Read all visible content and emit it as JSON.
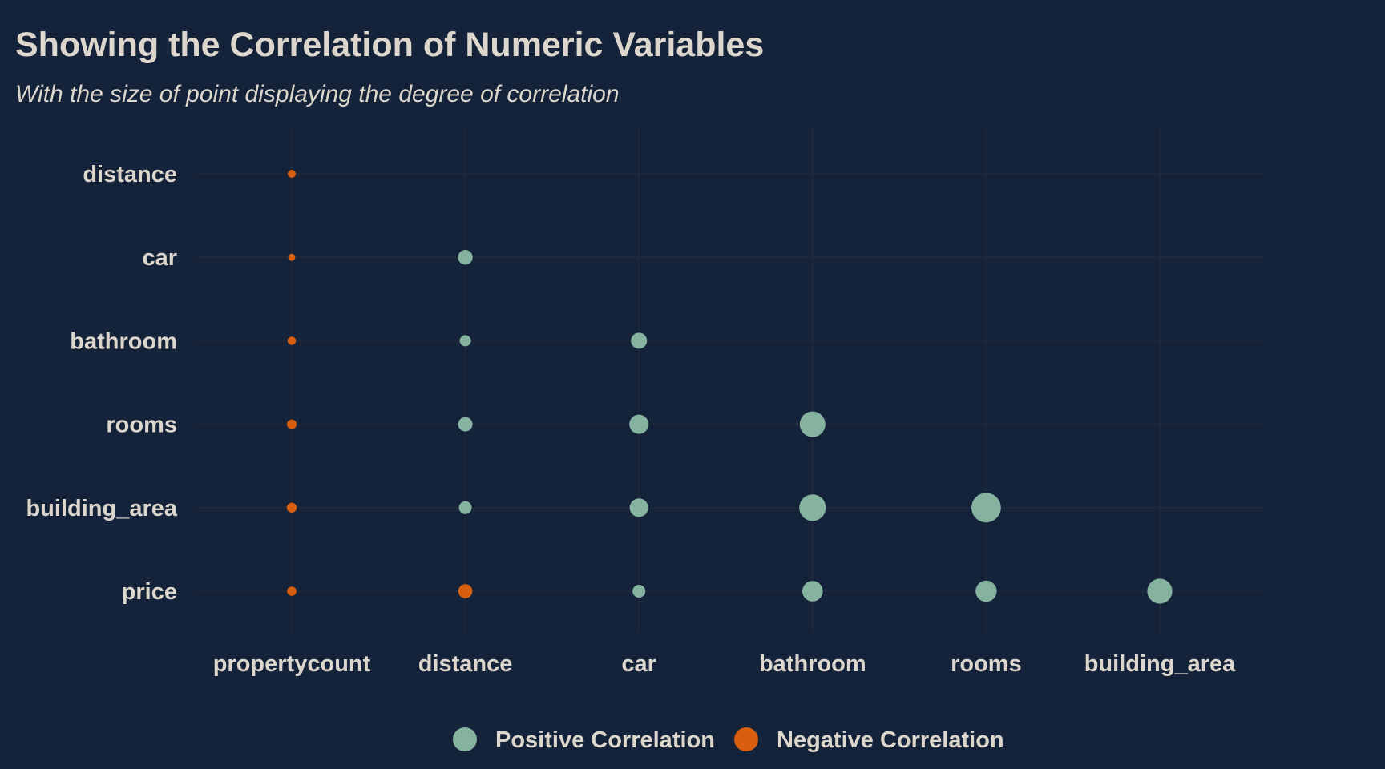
{
  "chart_data": {
    "type": "scatter",
    "title": "Showing the Correlation of Numeric Variables",
    "subtitle": "With the size of point displaying the degree of correlation",
    "x_categories": [
      "propertycount",
      "distance",
      "car",
      "bathroom",
      "rooms",
      "building_area"
    ],
    "y_categories": [
      "price",
      "building_area",
      "rooms",
      "bathroom",
      "car",
      "distance"
    ],
    "legend": {
      "placement": "bottom",
      "entries": [
        {
          "label": "Positive Correlation",
          "color": "#86b3a0"
        },
        {
          "label": "Negative Correlation",
          "color": "#d95f0e"
        }
      ]
    },
    "points": [
      {
        "x": "propertycount",
        "y": "distance",
        "r": -0.05
      },
      {
        "x": "propertycount",
        "y": "car",
        "r": -0.02
      },
      {
        "x": "propertycount",
        "y": "bathroom",
        "r": -0.06
      },
      {
        "x": "propertycount",
        "y": "rooms",
        "r": -0.1
      },
      {
        "x": "propertycount",
        "y": "building_area",
        "r": -0.11
      },
      {
        "x": "propertycount",
        "y": "price",
        "r": -0.09
      },
      {
        "x": "distance",
        "y": "car",
        "r": 0.26
      },
      {
        "x": "distance",
        "y": "bathroom",
        "r": 0.15
      },
      {
        "x": "distance",
        "y": "rooms",
        "r": 0.25
      },
      {
        "x": "distance",
        "y": "building_area",
        "r": 0.2
      },
      {
        "x": "distance",
        "y": "price",
        "r": -0.24
      },
      {
        "x": "car",
        "y": "bathroom",
        "r": 0.3
      },
      {
        "x": "car",
        "y": "rooms",
        "r": 0.4
      },
      {
        "x": "car",
        "y": "building_area",
        "r": 0.38
      },
      {
        "x": "car",
        "y": "price",
        "r": 0.2
      },
      {
        "x": "bathroom",
        "y": "rooms",
        "r": 0.6
      },
      {
        "x": "bathroom",
        "y": "building_area",
        "r": 0.63
      },
      {
        "x": "bathroom",
        "y": "price",
        "r": 0.44
      },
      {
        "x": "rooms",
        "y": "building_area",
        "r": 0.72
      },
      {
        "x": "rooms",
        "y": "price",
        "r": 0.46
      },
      {
        "x": "building_area",
        "y": "price",
        "r": 0.58
      }
    ],
    "grid": true
  },
  "colors": {
    "background": "#14233a",
    "text": "#dcd6cc",
    "grid": "#22283a",
    "positive": "#86b3a0",
    "negative": "#d95f0e"
  }
}
